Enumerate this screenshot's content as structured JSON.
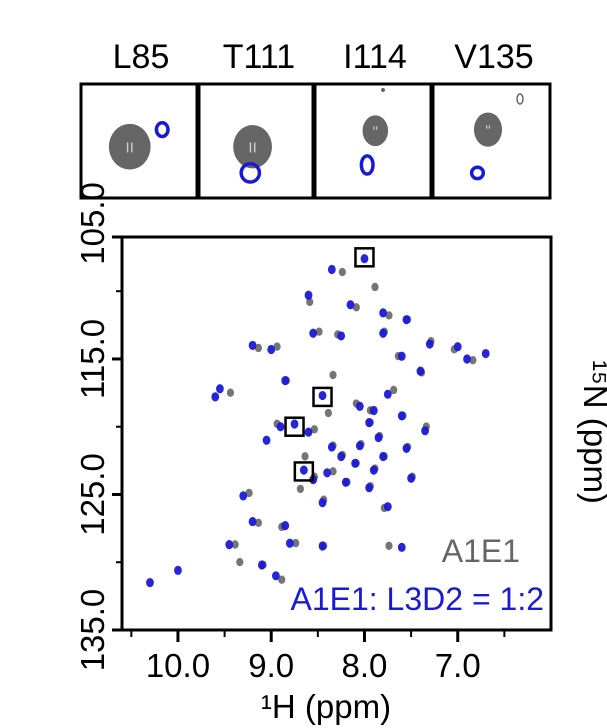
{
  "chart_data": {
    "type": "scatter",
    "title": "",
    "xlabel": "¹H (ppm)",
    "ylabel": "¹⁵N (ppm)",
    "xlim": [
      10.6,
      6.0
    ],
    "ylim": [
      106.0,
      135.0
    ],
    "x_ticks": [
      10.0,
      9.0,
      8.0,
      7.0
    ],
    "x_tick_labels": [
      "10.0",
      "9.0",
      "8.0",
      "7.0"
    ],
    "y_ticks": [
      105.0,
      115.0,
      125.0,
      135.0
    ],
    "y_tick_labels": [
      "105.0",
      "115.0",
      "125.0",
      "135.0"
    ],
    "legend": [
      {
        "name": "A1E1",
        "color": "#666666"
      },
      {
        "name": "A1E1: L3D2 = 1:2",
        "color": "#1a1ad6"
      }
    ],
    "highlight_boxes": [
      {
        "label": "L85",
        "x": 8.0,
        "y": 107.5
      },
      {
        "label": "T111",
        "x": 8.45,
        "y": 117.8
      },
      {
        "label": "I114",
        "x": 8.75,
        "y": 120.0
      },
      {
        "label": "V135",
        "x": 8.65,
        "y": 123.3
      }
    ],
    "series": [
      {
        "name": "A1E1",
        "color": "#666666",
        "points": [
          [
            8.25,
            108.5
          ],
          [
            7.9,
            109.6
          ],
          [
            8.6,
            110.7
          ],
          [
            8.1,
            111.1
          ],
          [
            7.75,
            111.7
          ],
          [
            7.55,
            112.0
          ],
          [
            7.8,
            112.9
          ],
          [
            8.5,
            112.9
          ],
          [
            8.3,
            113.1
          ],
          [
            7.3,
            113.6
          ],
          [
            7.05,
            114.2
          ],
          [
            6.85,
            115.0
          ],
          [
            7.65,
            114.7
          ],
          [
            7.4,
            115.9
          ],
          [
            8.95,
            114.0
          ],
          [
            9.15,
            114.1
          ],
          [
            8.85,
            116.5
          ],
          [
            8.35,
            116.1
          ],
          [
            7.7,
            117.2
          ],
          [
            9.45,
            117.4
          ],
          [
            8.1,
            118.2
          ],
          [
            7.95,
            118.7
          ],
          [
            8.4,
            118.9
          ],
          [
            7.6,
            119.1
          ],
          [
            7.95,
            119.6
          ],
          [
            8.95,
            119.7
          ],
          [
            8.55,
            120.1
          ],
          [
            7.35,
            119.9
          ],
          [
            7.85,
            120.6
          ],
          [
            8.05,
            121.2
          ],
          [
            8.35,
            121.3
          ],
          [
            7.55,
            121.4
          ],
          [
            7.8,
            122.1
          ],
          [
            8.65,
            122.1
          ],
          [
            8.25,
            122.0
          ],
          [
            8.1,
            122.6
          ],
          [
            7.9,
            123.0
          ],
          [
            8.35,
            123.2
          ],
          [
            8.55,
            123.6
          ],
          [
            7.5,
            123.6
          ],
          [
            8.2,
            124.0
          ],
          [
            7.95,
            124.3
          ],
          [
            8.7,
            124.5
          ],
          [
            9.25,
            124.8
          ],
          [
            8.45,
            125.3
          ],
          [
            7.8,
            125.9
          ],
          [
            9.15,
            127.0
          ],
          [
            8.9,
            127.3
          ],
          [
            8.75,
            128.5
          ],
          [
            8.45,
            128.7
          ],
          [
            7.75,
            128.7
          ],
          [
            9.4,
            128.6
          ],
          [
            9.35,
            129.9
          ],
          [
            9.1,
            130.1
          ],
          [
            8.9,
            131.2
          ]
        ]
      },
      {
        "name": "A1E1: L3D2 = 1:2",
        "color": "#1a1ad6",
        "points": [
          [
            8.0,
            107.6
          ],
          [
            8.35,
            108.4
          ],
          [
            8.6,
            110.3
          ],
          [
            8.15,
            111.0
          ],
          [
            7.8,
            111.6
          ],
          [
            7.55,
            112.1
          ],
          [
            7.8,
            113.1
          ],
          [
            8.55,
            113.1
          ],
          [
            8.25,
            113.3
          ],
          [
            7.3,
            113.9
          ],
          [
            7.0,
            114.1
          ],
          [
            6.9,
            115.0
          ],
          [
            7.6,
            114.8
          ],
          [
            6.7,
            114.6
          ],
          [
            7.4,
            115.9
          ],
          [
            9.0,
            114.3
          ],
          [
            9.2,
            114.0
          ],
          [
            8.85,
            116.6
          ],
          [
            8.45,
            117.7
          ],
          [
            7.75,
            117.6
          ],
          [
            9.55,
            117.2
          ],
          [
            9.6,
            117.8
          ],
          [
            8.05,
            118.5
          ],
          [
            7.9,
            118.8
          ],
          [
            8.75,
            119.8
          ],
          [
            7.6,
            119.2
          ],
          [
            7.95,
            119.7
          ],
          [
            8.9,
            120.0
          ],
          [
            8.6,
            120.4
          ],
          [
            7.35,
            120.3
          ],
          [
            7.85,
            120.8
          ],
          [
            8.05,
            121.4
          ],
          [
            9.05,
            121.0
          ],
          [
            8.35,
            121.5
          ],
          [
            7.55,
            121.6
          ],
          [
            7.8,
            122.2
          ],
          [
            8.65,
            123.2
          ],
          [
            8.25,
            122.2
          ],
          [
            8.1,
            122.7
          ],
          [
            7.9,
            123.2
          ],
          [
            8.4,
            123.4
          ],
          [
            8.55,
            123.9
          ],
          [
            7.5,
            123.8
          ],
          [
            8.2,
            124.1
          ],
          [
            7.95,
            124.5
          ],
          [
            9.3,
            125.1
          ],
          [
            8.45,
            125.6
          ],
          [
            7.75,
            125.9
          ],
          [
            9.2,
            127.0
          ],
          [
            8.85,
            127.3
          ],
          [
            8.8,
            128.6
          ],
          [
            8.45,
            128.8
          ],
          [
            7.6,
            128.9
          ],
          [
            9.45,
            128.7
          ],
          [
            9.1,
            130.2
          ],
          [
            8.95,
            131.0
          ],
          [
            10.0,
            130.6
          ],
          [
            10.3,
            131.5
          ]
        ]
      }
    ]
  },
  "insets": [
    {
      "label": "L85",
      "gray": [
        0.42,
        0.55,
        0.36,
        0.4
      ],
      "blue": [
        0.7,
        0.4,
        0.1,
        0.12
      ],
      "tick": "II"
    },
    {
      "label": "T111",
      "gray": [
        0.47,
        0.55,
        0.34,
        0.38
      ],
      "blue": [
        0.45,
        0.78,
        0.16,
        0.16
      ],
      "tick": "II"
    },
    {
      "label": "I114",
      "gray": [
        0.52,
        0.41,
        0.22,
        0.27
      ],
      "blue": [
        0.45,
        0.71,
        0.1,
        0.16
      ],
      "tick": "\""
    },
    {
      "label": "V135",
      "gray": [
        0.47,
        0.4,
        0.24,
        0.3
      ],
      "blue": [
        0.38,
        0.78,
        0.1,
        0.1
      ],
      "tick": "\""
    }
  ]
}
